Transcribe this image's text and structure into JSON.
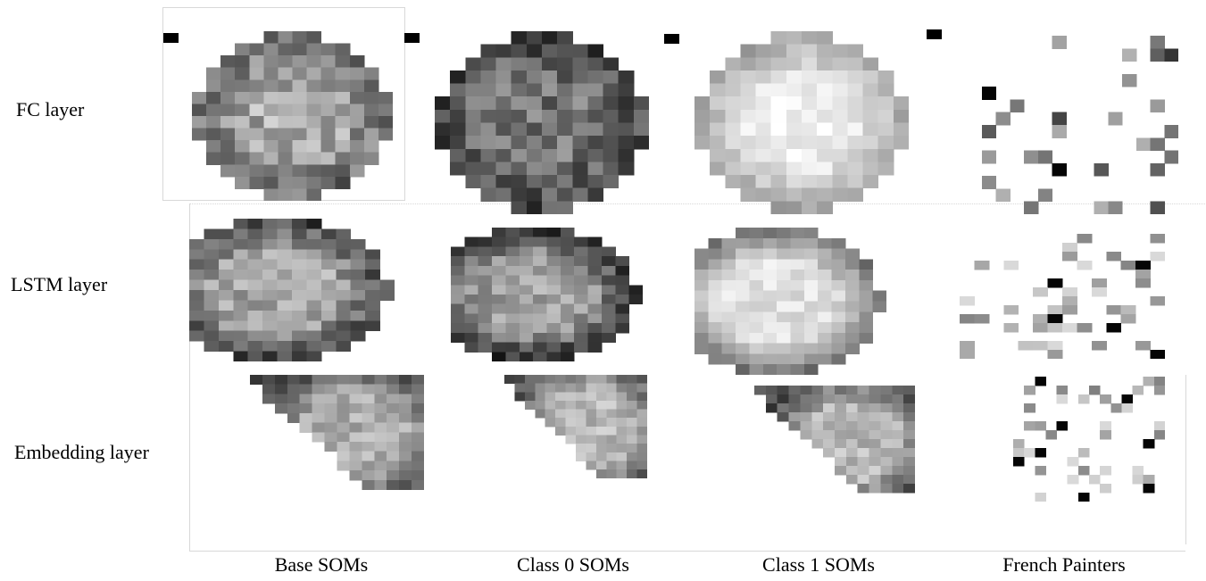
{
  "rows": [
    {
      "label": "FC layer"
    },
    {
      "label": "LSTM layer"
    },
    {
      "label": "Embedding layer"
    }
  ],
  "columns": [
    {
      "label": "Base SOMs"
    },
    {
      "label": "Class 0 SOMs"
    },
    {
      "label": "Class 1 SOMs"
    },
    {
      "label": "French Painters"
    }
  ],
  "grid_size": 14,
  "panels": [
    {
      "name": "fc-base-soms",
      "shape": "circle",
      "bias": 0.62,
      "spread": 0.18,
      "ring": 0.2
    },
    {
      "name": "fc-class0-soms",
      "shape": "circle",
      "bias": 0.42,
      "spread": 0.18,
      "ring": 0.1
    },
    {
      "name": "fc-class1-soms",
      "shape": "circle",
      "bias": 0.9,
      "spread": 0.08,
      "ring": 0.3
    },
    {
      "name": "fc-french-painters",
      "shape": "sparse",
      "bias": 0.45,
      "spread": 0.25,
      "ring": 0
    },
    {
      "name": "lstm-base-soms",
      "shape": "bullet",
      "bias": 0.65,
      "spread": 0.15,
      "ring": 0.55
    },
    {
      "name": "lstm-class0-soms",
      "shape": "bullet",
      "bias": 0.62,
      "spread": 0.15,
      "ring": 0.6
    },
    {
      "name": "lstm-class1-soms",
      "shape": "bullet",
      "bias": 0.88,
      "spread": 0.08,
      "ring": 0.6
    },
    {
      "name": "lstm-french-painters",
      "shape": "sparse",
      "bias": 0.7,
      "spread": 0.2,
      "ring": 0
    },
    {
      "name": "embedding-base-soms",
      "shape": "triangle",
      "bias": 0.68,
      "spread": 0.12,
      "ring": 0.55
    },
    {
      "name": "embedding-class0-soms",
      "shape": "triangle",
      "bias": 0.72,
      "spread": 0.12,
      "ring": 0.5
    },
    {
      "name": "embedding-class1-soms",
      "shape": "triangle",
      "bias": 0.72,
      "spread": 0.12,
      "ring": 0.6
    },
    {
      "name": "embedding-french-painters",
      "shape": "sparse",
      "bias": 0.7,
      "spread": 0.2,
      "ring": 0
    }
  ]
}
